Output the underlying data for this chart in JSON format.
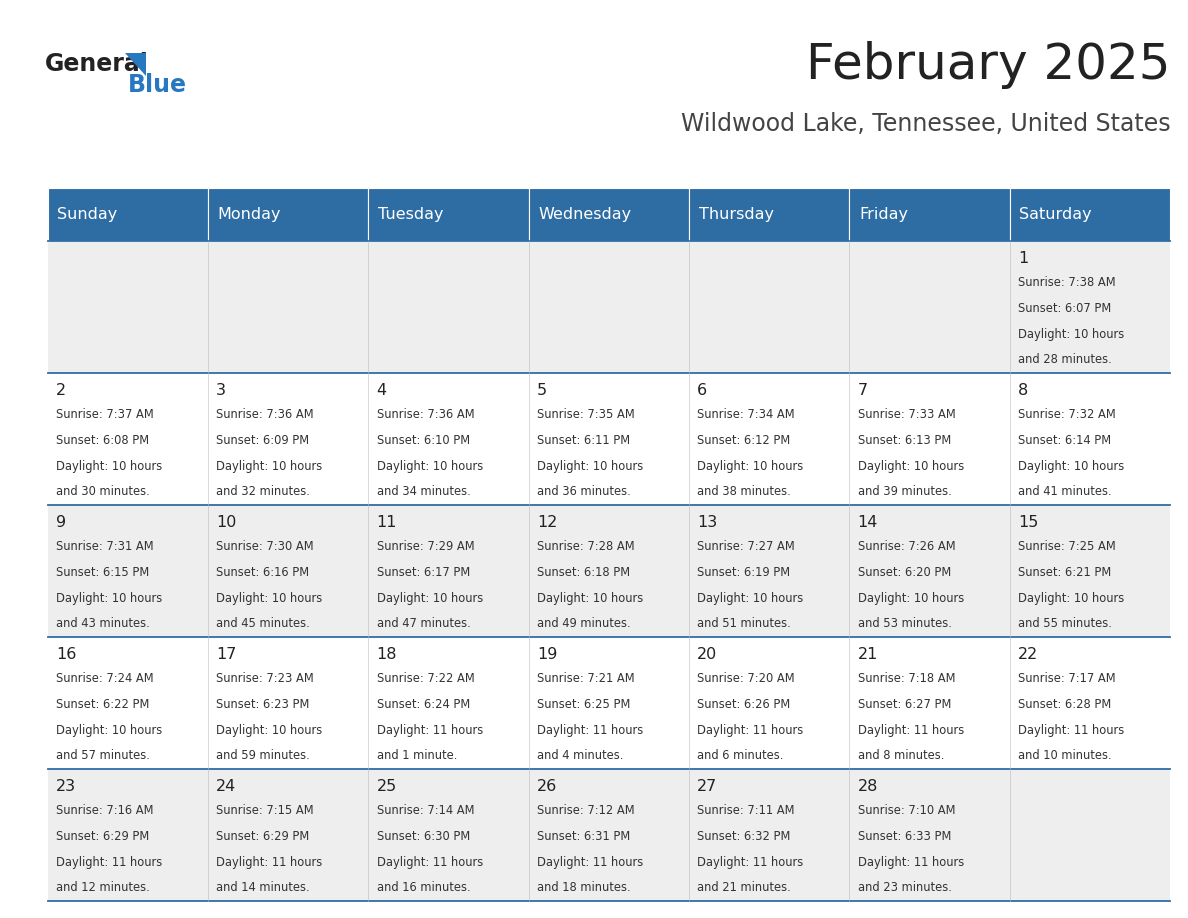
{
  "title": "February 2025",
  "subtitle": "Wildwood Lake, Tennessee, United States",
  "days_of_week": [
    "Sunday",
    "Monday",
    "Tuesday",
    "Wednesday",
    "Thursday",
    "Friday",
    "Saturday"
  ],
  "header_bg": "#2E6DA4",
  "header_text": "#FFFFFF",
  "row_bg": [
    "#EEEEEE",
    "#FFFFFF",
    "#EEEEEE",
    "#FFFFFF",
    "#EEEEEE"
  ],
  "border_color": "#2E6DA4",
  "title_color": "#222222",
  "subtitle_color": "#444444",
  "day_num_color": "#222222",
  "cell_text_color": "#333333",
  "calendar": [
    [
      null,
      null,
      null,
      null,
      null,
      null,
      {
        "day": 1,
        "sunrise": "7:38 AM",
        "sunset": "6:07 PM",
        "daylight_line1": "Daylight: 10 hours",
        "daylight_line2": "and 28 minutes."
      }
    ],
    [
      {
        "day": 2,
        "sunrise": "7:37 AM",
        "sunset": "6:08 PM",
        "daylight_line1": "Daylight: 10 hours",
        "daylight_line2": "and 30 minutes."
      },
      {
        "day": 3,
        "sunrise": "7:36 AM",
        "sunset": "6:09 PM",
        "daylight_line1": "Daylight: 10 hours",
        "daylight_line2": "and 32 minutes."
      },
      {
        "day": 4,
        "sunrise": "7:36 AM",
        "sunset": "6:10 PM",
        "daylight_line1": "Daylight: 10 hours",
        "daylight_line2": "and 34 minutes."
      },
      {
        "day": 5,
        "sunrise": "7:35 AM",
        "sunset": "6:11 PM",
        "daylight_line1": "Daylight: 10 hours",
        "daylight_line2": "and 36 minutes."
      },
      {
        "day": 6,
        "sunrise": "7:34 AM",
        "sunset": "6:12 PM",
        "daylight_line1": "Daylight: 10 hours",
        "daylight_line2": "and 38 minutes."
      },
      {
        "day": 7,
        "sunrise": "7:33 AM",
        "sunset": "6:13 PM",
        "daylight_line1": "Daylight: 10 hours",
        "daylight_line2": "and 39 minutes."
      },
      {
        "day": 8,
        "sunrise": "7:32 AM",
        "sunset": "6:14 PM",
        "daylight_line1": "Daylight: 10 hours",
        "daylight_line2": "and 41 minutes."
      }
    ],
    [
      {
        "day": 9,
        "sunrise": "7:31 AM",
        "sunset": "6:15 PM",
        "daylight_line1": "Daylight: 10 hours",
        "daylight_line2": "and 43 minutes."
      },
      {
        "day": 10,
        "sunrise": "7:30 AM",
        "sunset": "6:16 PM",
        "daylight_line1": "Daylight: 10 hours",
        "daylight_line2": "and 45 minutes."
      },
      {
        "day": 11,
        "sunrise": "7:29 AM",
        "sunset": "6:17 PM",
        "daylight_line1": "Daylight: 10 hours",
        "daylight_line2": "and 47 minutes."
      },
      {
        "day": 12,
        "sunrise": "7:28 AM",
        "sunset": "6:18 PM",
        "daylight_line1": "Daylight: 10 hours",
        "daylight_line2": "and 49 minutes."
      },
      {
        "day": 13,
        "sunrise": "7:27 AM",
        "sunset": "6:19 PM",
        "daylight_line1": "Daylight: 10 hours",
        "daylight_line2": "and 51 minutes."
      },
      {
        "day": 14,
        "sunrise": "7:26 AM",
        "sunset": "6:20 PM",
        "daylight_line1": "Daylight: 10 hours",
        "daylight_line2": "and 53 minutes."
      },
      {
        "day": 15,
        "sunrise": "7:25 AM",
        "sunset": "6:21 PM",
        "daylight_line1": "Daylight: 10 hours",
        "daylight_line2": "and 55 minutes."
      }
    ],
    [
      {
        "day": 16,
        "sunrise": "7:24 AM",
        "sunset": "6:22 PM",
        "daylight_line1": "Daylight: 10 hours",
        "daylight_line2": "and 57 minutes."
      },
      {
        "day": 17,
        "sunrise": "7:23 AM",
        "sunset": "6:23 PM",
        "daylight_line1": "Daylight: 10 hours",
        "daylight_line2": "and 59 minutes."
      },
      {
        "day": 18,
        "sunrise": "7:22 AM",
        "sunset": "6:24 PM",
        "daylight_line1": "Daylight: 11 hours",
        "daylight_line2": "and 1 minute."
      },
      {
        "day": 19,
        "sunrise": "7:21 AM",
        "sunset": "6:25 PM",
        "daylight_line1": "Daylight: 11 hours",
        "daylight_line2": "and 4 minutes."
      },
      {
        "day": 20,
        "sunrise": "7:20 AM",
        "sunset": "6:26 PM",
        "daylight_line1": "Daylight: 11 hours",
        "daylight_line2": "and 6 minutes."
      },
      {
        "day": 21,
        "sunrise": "7:18 AM",
        "sunset": "6:27 PM",
        "daylight_line1": "Daylight: 11 hours",
        "daylight_line2": "and 8 minutes."
      },
      {
        "day": 22,
        "sunrise": "7:17 AM",
        "sunset": "6:28 PM",
        "daylight_line1": "Daylight: 11 hours",
        "daylight_line2": "and 10 minutes."
      }
    ],
    [
      {
        "day": 23,
        "sunrise": "7:16 AM",
        "sunset": "6:29 PM",
        "daylight_line1": "Daylight: 11 hours",
        "daylight_line2": "and 12 minutes."
      },
      {
        "day": 24,
        "sunrise": "7:15 AM",
        "sunset": "6:29 PM",
        "daylight_line1": "Daylight: 11 hours",
        "daylight_line2": "and 14 minutes."
      },
      {
        "day": 25,
        "sunrise": "7:14 AM",
        "sunset": "6:30 PM",
        "daylight_line1": "Daylight: 11 hours",
        "daylight_line2": "and 16 minutes."
      },
      {
        "day": 26,
        "sunrise": "7:12 AM",
        "sunset": "6:31 PM",
        "daylight_line1": "Daylight: 11 hours",
        "daylight_line2": "and 18 minutes."
      },
      {
        "day": 27,
        "sunrise": "7:11 AM",
        "sunset": "6:32 PM",
        "daylight_line1": "Daylight: 11 hours",
        "daylight_line2": "and 21 minutes."
      },
      {
        "day": 28,
        "sunrise": "7:10 AM",
        "sunset": "6:33 PM",
        "daylight_line1": "Daylight: 11 hours",
        "daylight_line2": "and 23 minutes."
      },
      null
    ]
  ],
  "logo_general_color": "#222222",
  "logo_blue_color": "#2878C0",
  "logo_triangle_color": "#2878C0"
}
